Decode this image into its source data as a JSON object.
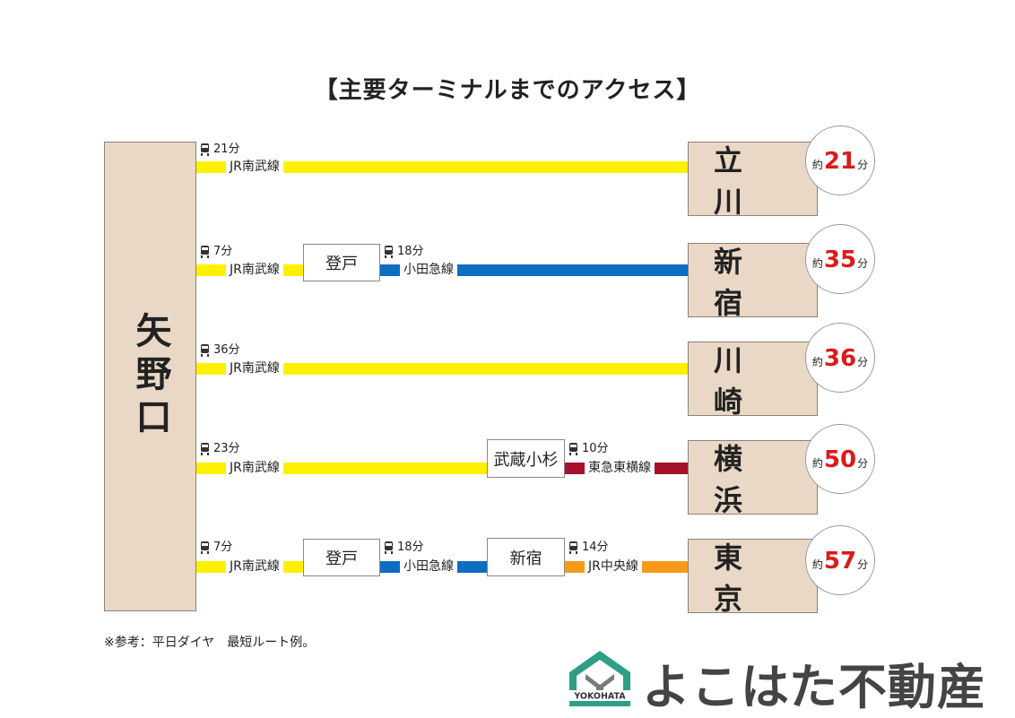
{
  "title": "【主要ターミナルまでのアクセス】",
  "origin": "矢野口",
  "routes": [
    {
      "dest": "立 川",
      "minutes": "21",
      "pre": "約",
      "suf": "分",
      "legs": [
        {
          "line": "JR南武線",
          "time": "21分"
        }
      ]
    },
    {
      "dest": "新 宿",
      "minutes": "35",
      "pre": "約",
      "suf": "分",
      "legs": [
        {
          "line": "JR南武線",
          "time": "7分"
        },
        {
          "line": "小田急線",
          "time": "18分"
        }
      ],
      "transfers": [
        "登戸"
      ]
    },
    {
      "dest": "川 崎",
      "minutes": "36",
      "pre": "約",
      "suf": "分",
      "legs": [
        {
          "line": "JR南武線",
          "time": "36分"
        }
      ]
    },
    {
      "dest": "横 浜",
      "minutes": "50",
      "pre": "約",
      "suf": "分",
      "legs": [
        {
          "line": "JR南武線",
          "time": "23分"
        },
        {
          "line": "東急東横線",
          "time": "10分"
        }
      ],
      "transfers": [
        "武蔵小杉"
      ]
    },
    {
      "dest": "東 京",
      "minutes": "57",
      "pre": "約",
      "suf": "分",
      "legs": [
        {
          "line": "JR南武線",
          "time": "7分"
        },
        {
          "line": "小田急線",
          "time": "18分"
        },
        {
          "line": "JR中央線",
          "time": "14分"
        }
      ],
      "transfers": [
        "登戸",
        "新宿"
      ]
    }
  ],
  "line_colors": {
    "JR南武線": "#fff000",
    "小田急線": "#0d6dc2",
    "東急東横線": "#a5122a",
    "JR中央線": "#f79a1a"
  },
  "note": "※参考：平日ダイヤ　最短ルート例。",
  "brand": {
    "name": "よこはた不動産",
    "logo_text": "YOKOHATA"
  }
}
